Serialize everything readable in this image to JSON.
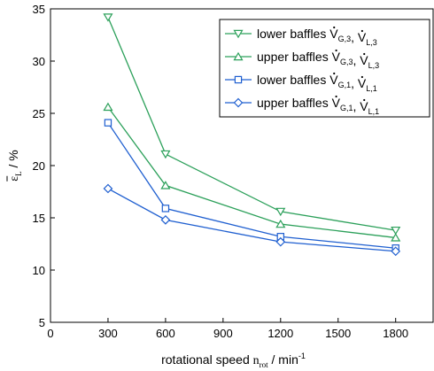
{
  "chart_data": {
    "type": "line",
    "xlabel_prefix": "rotational speed ",
    "xlabel_symbol": "n",
    "xlabel_sub": "rot",
    "xlabel_suffix": " / min",
    "xlabel_sup": "-1",
    "ylabel_symbol": "ε",
    "ylabel_sub": "L",
    "ylabel_suffix": " / %",
    "xlim": [
      0,
      2000
    ],
    "ylim": [
      5,
      35
    ],
    "x_ticks": [
      0,
      300,
      600,
      900,
      1200,
      1500,
      1800
    ],
    "y_ticks": [
      5,
      10,
      15,
      20,
      25,
      30,
      35
    ],
    "grid": false,
    "legend_position": "top-right",
    "series": [
      {
        "name_text": "lower baffles ",
        "name_parts": [
          {
            "sym": "V",
            "sub": "G,3"
          },
          {
            "sep": ", "
          },
          {
            "sym": "V",
            "sub": "L,3"
          }
        ],
        "color": "#2ca05a",
        "marker": "triangle-down",
        "x": [
          300,
          600,
          1200,
          1800
        ],
        "y": [
          34.2,
          21.1,
          15.6,
          13.8
        ]
      },
      {
        "name_text": "upper baffles ",
        "name_parts": [
          {
            "sym": "V",
            "sub": "G,3"
          },
          {
            "sep": ", "
          },
          {
            "sym": "V",
            "sub": "L,3"
          }
        ],
        "color": "#2ca05a",
        "marker": "triangle-up",
        "x": [
          300,
          600,
          1200,
          1800
        ],
        "y": [
          25.6,
          18.1,
          14.4,
          13.1
        ]
      },
      {
        "name_text": "lower baffles ",
        "name_parts": [
          {
            "sym": "V",
            "sub": "G,1"
          },
          {
            "sep": ", "
          },
          {
            "sym": "V",
            "sub": "L,1"
          }
        ],
        "color": "#1f5fd0",
        "marker": "square",
        "x": [
          300,
          600,
          1200,
          1800
        ],
        "y": [
          24.1,
          15.9,
          13.2,
          12.1
        ]
      },
      {
        "name_text": "upper baffles ",
        "name_parts": [
          {
            "sym": "V",
            "sub": "G,1"
          },
          {
            "sep": ", "
          },
          {
            "sym": "V",
            "sub": "L,1"
          }
        ],
        "color": "#1f5fd0",
        "marker": "diamond",
        "x": [
          300,
          600,
          1200,
          1800
        ],
        "y": [
          17.8,
          14.8,
          12.7,
          11.8
        ]
      }
    ]
  }
}
